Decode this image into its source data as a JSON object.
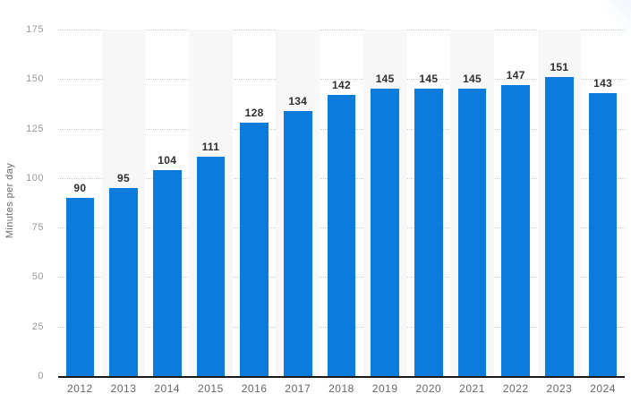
{
  "chart_data": {
    "type": "bar",
    "title": "",
    "categories": [
      "2012",
      "2013",
      "2014",
      "2015",
      "2016",
      "2017",
      "2018",
      "2019",
      "2020",
      "2021",
      "2022",
      "2023",
      "2024"
    ],
    "values": [
      90,
      95,
      104,
      111,
      128,
      134,
      142,
      145,
      145,
      145,
      147,
      151,
      143
    ],
    "value_labels": [
      "90",
      "95",
      "104",
      "111",
      "128",
      "134",
      "142",
      "145",
      "145",
      "145",
      "147",
      "151",
      "143"
    ],
    "xlabel": "",
    "ylabel": "Minutes per day",
    "ylim": [
      0,
      175
    ],
    "yticks": [
      0,
      25,
      50,
      75,
      100,
      125,
      150,
      175
    ],
    "grid": "horizontal-dotted",
    "legend": "none",
    "striped_category_indexes": [
      1,
      3,
      5,
      7,
      9,
      11
    ],
    "colors": {
      "bar": "#0b7bdc",
      "stripe": "#f7f7f7",
      "value_label": "#2f2f2f",
      "y_tick_label": "#999999",
      "x_tick_label": "#666666",
      "y_axis_title": "#6b6b6b",
      "gridline": "#cccccc",
      "axis_line": "#1a1a1a",
      "background": "#ffffff"
    }
  }
}
